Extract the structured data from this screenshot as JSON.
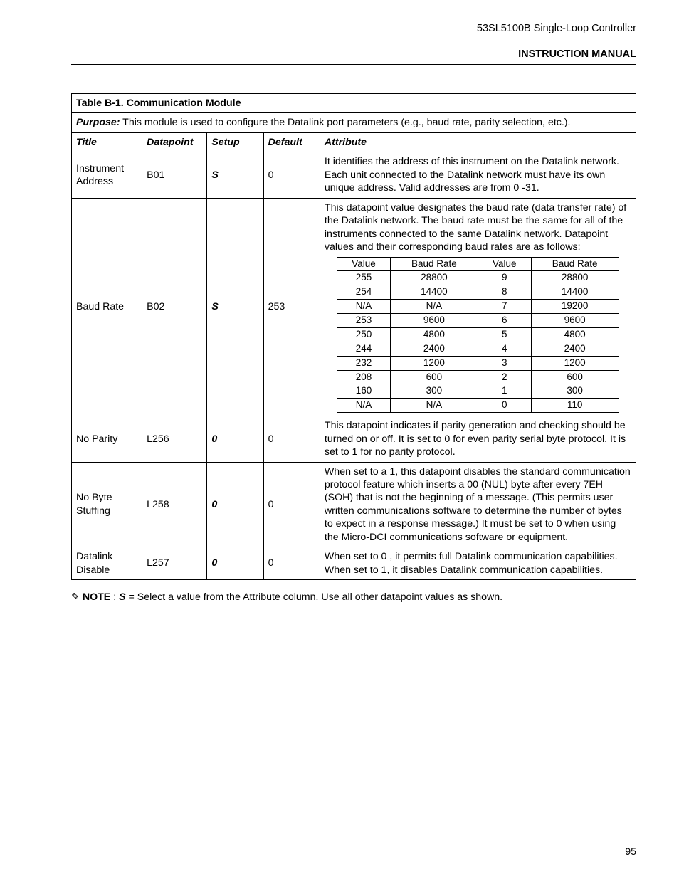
{
  "header": {
    "product": "53SL5100B Single-Loop Controller",
    "doc_type": "INSTRUCTION MANUAL"
  },
  "table": {
    "caption": "Table B-1. Communication Module",
    "purpose_label": "Purpose:",
    "purpose_text": " This module is used to configure the Datalink port parameters (e.g., baud rate, parity selection, etc.).",
    "columns": {
      "title": "Title",
      "datapoint": "Datapoint",
      "setup": "Setup",
      "default": "Default",
      "attribute": "Attribute"
    }
  },
  "rows": {
    "r1": {
      "title": "Instrument Address",
      "datapoint": "B01",
      "setup": "S",
      "default": "0",
      "attribute": "It identifies the address of this instrument on the Datalink network. Each unit connected to the Datalink network must have its own unique address. Valid addresses are from 0 -31."
    },
    "r2": {
      "title": "Baud Rate",
      "datapoint": "B02",
      "setup": "S",
      "default": "253",
      "attr_intro": "This datapoint value designates the baud rate (data transfer rate) of the Datalink network. The baud rate must be the same for all of the instruments connected to the same Datalink network. Datapoint values and their corresponding baud rates are as follows:"
    },
    "r3": {
      "title": "No Parity",
      "datapoint": "L256",
      "setup": "0",
      "default": "0",
      "attribute": "This datapoint indicates if parity generation and checking should be turned on or off. It is set to 0 for even parity serial byte protocol. It is set to 1 for no parity protocol."
    },
    "r4": {
      "title": "No Byte Stuffing",
      "datapoint": "L258",
      "setup": "0",
      "default": "0",
      "attribute": "When set to a 1, this datapoint disables the standard communication protocol feature which inserts a 00 (NUL) byte after every 7EH (SOH) that is not the beginning of a message. (This permits user written communications software to determine the number of bytes to expect in a response message.) It must be set to 0 when using the Micro-DCI communications software or equipment."
    },
    "r5": {
      "title": "Datalink Disable",
      "datapoint": "L257",
      "setup": "0",
      "default": "0",
      "attribute": "When set to 0 , it permits full Datalink communication capabilities. When set to 1, it disables Datalink communication capabilities."
    }
  },
  "baud_table": {
    "headers": {
      "v1": "Value",
      "b1": "Baud Rate",
      "v2": "Value",
      "b2": "Baud Rate"
    },
    "rows": [
      {
        "v1": "255",
        "b1": "28800",
        "v2": "9",
        "b2": "28800"
      },
      {
        "v1": "254",
        "b1": "14400",
        "v2": "8",
        "b2": "14400"
      },
      {
        "v1": "N/A",
        "b1": "N/A",
        "v2": "7",
        "b2": "19200"
      },
      {
        "v1": "253",
        "b1": "9600",
        "v2": "6",
        "b2": "9600"
      },
      {
        "v1": "250",
        "b1": "4800",
        "v2": "5",
        "b2": "4800"
      },
      {
        "v1": "244",
        "b1": "2400",
        "v2": "4",
        "b2": "2400"
      },
      {
        "v1": "232",
        "b1": "1200",
        "v2": "3",
        "b2": "1200"
      },
      {
        "v1": "208",
        "b1": "600",
        "v2": "2",
        "b2": "600"
      },
      {
        "v1": "160",
        "b1": "300",
        "v2": "1",
        "b2": "300"
      },
      {
        "v1": "N/A",
        "b1": "N/A",
        "v2": "0",
        "b2": "110"
      }
    ]
  },
  "note": {
    "icon": "✎",
    "label": "NOTE",
    "sep": " : ",
    "s": "S",
    "text": " = Select a value from the Attribute column. Use all other datapoint values as shown."
  },
  "page_number": "95"
}
